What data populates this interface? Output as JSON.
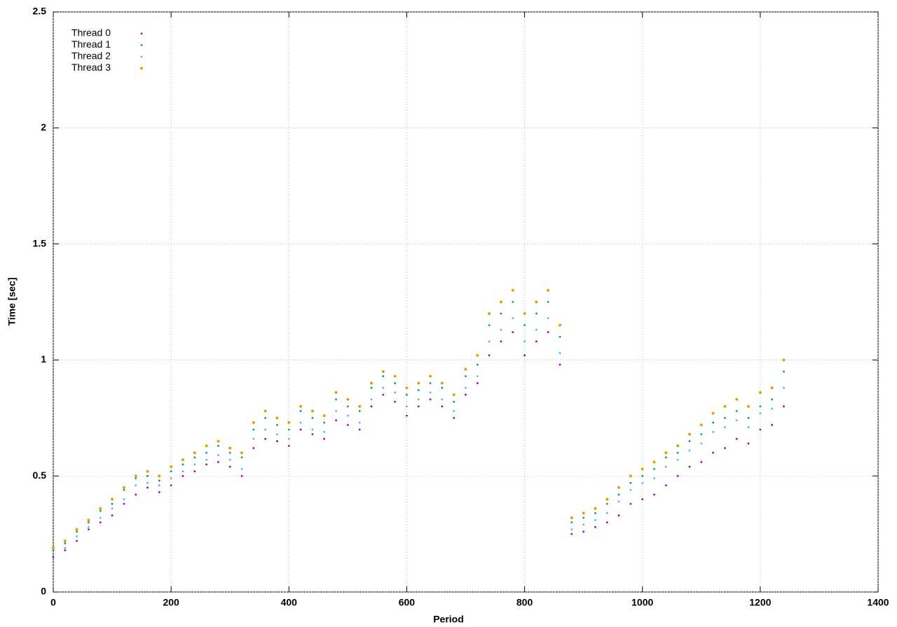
{
  "chart_data": {
    "type": "scatter",
    "xlabel": "Period",
    "ylabel": "Time [sec]",
    "xlim": [
      0,
      1400
    ],
    "xticks": [
      0,
      200,
      400,
      600,
      800,
      1000,
      1200,
      1400
    ],
    "ylim": [
      0,
      2.5
    ],
    "yticks": [
      0,
      0.5,
      1,
      1.5,
      2,
      2.5
    ],
    "grid": true,
    "legend": "top-left",
    "x": [
      0,
      20,
      40,
      60,
      80,
      100,
      120,
      140,
      160,
      180,
      200,
      220,
      240,
      260,
      280,
      300,
      320,
      340,
      360,
      380,
      400,
      420,
      440,
      460,
      480,
      500,
      520,
      540,
      560,
      580,
      600,
      620,
      640,
      660,
      680,
      700,
      720,
      740,
      760,
      780,
      800,
      820,
      840,
      860,
      880,
      900,
      920,
      940,
      960,
      980,
      1000,
      1020,
      1040,
      1060,
      1080,
      1100,
      1120,
      1140,
      1160,
      1180,
      1200,
      1220,
      1240
    ],
    "series": [
      {
        "name": "Thread 0",
        "color": "#9400d3",
        "values": [
          0.15,
          0.18,
          0.22,
          0.27,
          0.3,
          0.33,
          0.38,
          0.42,
          0.45,
          0.43,
          0.46,
          0.5,
          0.52,
          0.55,
          0.56,
          0.54,
          0.5,
          0.62,
          0.66,
          0.65,
          0.63,
          0.7,
          0.68,
          0.66,
          0.74,
          0.72,
          0.7,
          0.8,
          0.85,
          0.82,
          0.76,
          0.8,
          0.83,
          0.8,
          0.75,
          0.85,
          0.9,
          1.02,
          1.08,
          1.12,
          1.02,
          1.08,
          1.12,
          0.98,
          0.25,
          0.26,
          0.28,
          0.3,
          0.33,
          0.38,
          0.4,
          0.42,
          0.46,
          0.5,
          0.54,
          0.56,
          0.6,
          0.62,
          0.66,
          0.64,
          0.7,
          0.72,
          0.8
        ]
      },
      {
        "name": "Thread 1",
        "color": "#009e73",
        "values": [
          0.18,
          0.21,
          0.26,
          0.3,
          0.35,
          0.38,
          0.44,
          0.49,
          0.5,
          0.48,
          0.52,
          0.55,
          0.58,
          0.6,
          0.63,
          0.6,
          0.58,
          0.7,
          0.75,
          0.72,
          0.7,
          0.78,
          0.75,
          0.73,
          0.83,
          0.8,
          0.78,
          0.88,
          0.93,
          0.9,
          0.85,
          0.87,
          0.9,
          0.88,
          0.82,
          0.93,
          0.98,
          1.15,
          1.2,
          1.25,
          1.15,
          1.2,
          1.25,
          1.1,
          0.3,
          0.32,
          0.34,
          0.38,
          0.42,
          0.47,
          0.5,
          0.53,
          0.58,
          0.6,
          0.65,
          0.68,
          0.73,
          0.75,
          0.78,
          0.75,
          0.8,
          0.83,
          0.95
        ]
      },
      {
        "name": "Thread 2",
        "color": "#56b4e9",
        "values": [
          0.16,
          0.19,
          0.24,
          0.28,
          0.32,
          0.36,
          0.4,
          0.46,
          0.47,
          0.46,
          0.49,
          0.52,
          0.55,
          0.57,
          0.59,
          0.57,
          0.53,
          0.66,
          0.7,
          0.68,
          0.66,
          0.73,
          0.7,
          0.69,
          0.78,
          0.76,
          0.73,
          0.83,
          0.88,
          0.86,
          0.8,
          0.83,
          0.86,
          0.83,
          0.78,
          0.88,
          0.93,
          1.08,
          1.13,
          1.18,
          1.08,
          1.13,
          1.18,
          1.03,
          0.27,
          0.29,
          0.31,
          0.34,
          0.39,
          0.44,
          0.47,
          0.49,
          0.54,
          0.57,
          0.61,
          0.64,
          0.69,
          0.71,
          0.74,
          0.71,
          0.77,
          0.79,
          0.88
        ]
      },
      {
        "name": "Thread 3",
        "color": "#e69f00",
        "values": [
          0.19,
          0.22,
          0.27,
          0.31,
          0.36,
          0.4,
          0.45,
          0.5,
          0.52,
          0.5,
          0.54,
          0.57,
          0.6,
          0.63,
          0.65,
          0.62,
          0.6,
          0.73,
          0.78,
          0.75,
          0.73,
          0.8,
          0.78,
          0.76,
          0.86,
          0.83,
          0.8,
          0.9,
          0.95,
          0.93,
          0.88,
          0.9,
          0.93,
          0.9,
          0.85,
          0.96,
          1.02,
          1.2,
          1.25,
          1.3,
          1.2,
          1.25,
          1.3,
          1.15,
          0.32,
          0.34,
          0.36,
          0.4,
          0.45,
          0.5,
          0.53,
          0.56,
          0.6,
          0.63,
          0.68,
          0.72,
          0.77,
          0.8,
          0.83,
          0.8,
          0.86,
          0.88,
          1.0
        ]
      }
    ]
  }
}
